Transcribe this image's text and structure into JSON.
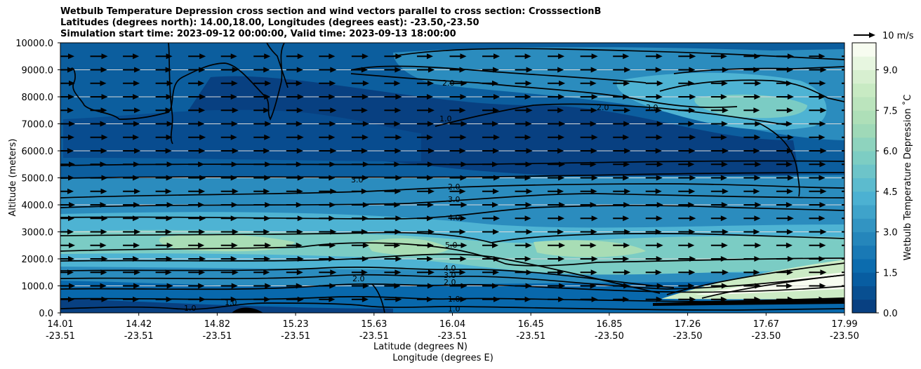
{
  "chart_data": {
    "type": "heatmap",
    "title_lines": [
      "Wetbulb Temperature Depression cross section and wind vectors parallel to cross section: CrosssectionB",
      "Latitudes (degrees north): 14.00,18.00, Longitudes (degrees east): -23.50,-23.50",
      "Simulation start time: 2023-09-12 00:00:00, Valid time: 2023-09-13 18:00:00"
    ],
    "ylabel": "Altitude (meters)",
    "xlabel_lat": "Latitude (degrees N)",
    "xlabel_lon": "Longitude (degrees E)",
    "ylim": [
      0,
      10000
    ],
    "y_ticks": [
      "0.0",
      "1000.0",
      "2000.0",
      "3000.0",
      "4000.0",
      "5000.0",
      "6000.0",
      "7000.0",
      "8000.0",
      "9000.0",
      "10000.0"
    ],
    "x_ticks_lat": [
      "14.01",
      "14.42",
      "14.82",
      "15.23",
      "15.63",
      "16.04",
      "16.45",
      "16.85",
      "17.26",
      "17.67",
      "17.99"
    ],
    "x_ticks_lon": [
      "-23.51",
      "-23.51",
      "-23.51",
      "-23.51",
      "-23.51",
      "-23.51",
      "-23.51",
      "-23.50",
      "-23.50",
      "-23.50",
      "-23.50"
    ],
    "grid": "horizontal",
    "colorbar": {
      "label": "Wetbulb Temperature Depression ˚C",
      "range": [
        0,
        10
      ],
      "ticks": [
        "0.0",
        "1.5",
        "3.0",
        "4.5",
        "6.0",
        "7.5",
        "9.0"
      ],
      "colors": [
        "#084081",
        "#0868ac",
        "#2b8cbe",
        "#4eb3d3",
        "#7bccc4",
        "#a8ddb5",
        "#ccebc5",
        "#f7fcf0"
      ]
    },
    "quiver_key": "10 m/s",
    "contour_labels": [
      "1.0",
      "2.0",
      "3.0",
      "4.0",
      "5.0",
      "1.0",
      "2.0",
      "3.0",
      "4.0",
      "1.0",
      "2.0",
      "3.0",
      "2.0",
      "1.0",
      "1.0",
      "1.0",
      "2.0",
      "3.0"
    ]
  }
}
